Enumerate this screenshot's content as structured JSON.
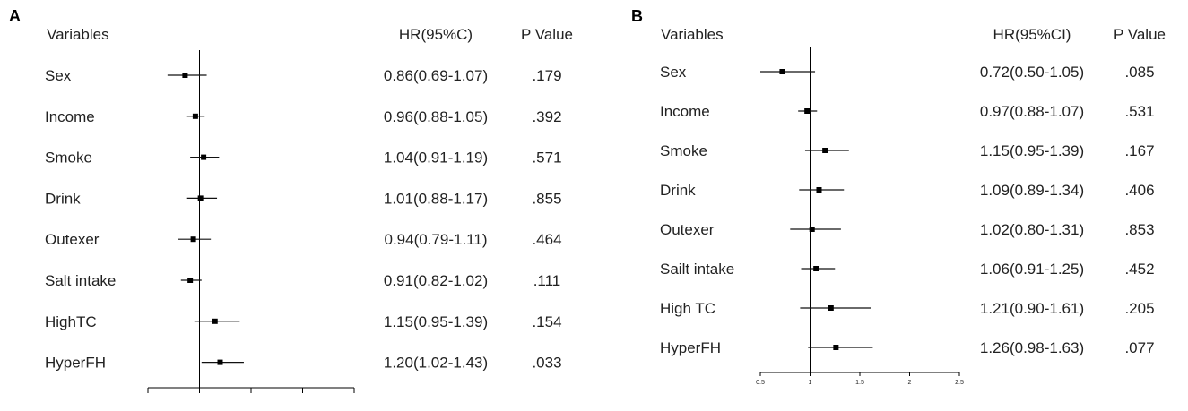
{
  "chart_data": [
    {
      "type": "forest",
      "panel_label": "A",
      "header": {
        "variables": "Variables",
        "hr": "HR(95%C)",
        "p": "P Value"
      },
      "xlim": [
        0.5,
        2.5
      ],
      "ref_line": 1,
      "rows": [
        {
          "variable": "Sex",
          "hr": 0.86,
          "lo": 0.69,
          "hi": 1.07,
          "hr_text": "0.86(0.69-1.07)",
          "p": ".179"
        },
        {
          "variable": "Income",
          "hr": 0.96,
          "lo": 0.88,
          "hi": 1.05,
          "hr_text": "0.96(0.88-1.05)",
          "p": ".392"
        },
        {
          "variable": "Smoke",
          "hr": 1.04,
          "lo": 0.91,
          "hi": 1.19,
          "hr_text": "1.04(0.91-1.19)",
          "p": ".571"
        },
        {
          "variable": "Drink",
          "hr": 1.01,
          "lo": 0.88,
          "hi": 1.17,
          "hr_text": "1.01(0.88-1.17)",
          "p": ".855"
        },
        {
          "variable": "Outexer",
          "hr": 0.94,
          "lo": 0.79,
          "hi": 1.11,
          "hr_text": "0.94(0.79-1.11)",
          "p": ".464"
        },
        {
          "variable": "Salt intake",
          "hr": 0.91,
          "lo": 0.82,
          "hi": 1.02,
          "hr_text": "0.91(0.82-1.02)",
          "p": ".111"
        },
        {
          "variable": "HighTC",
          "hr": 1.15,
          "lo": 0.95,
          "hi": 1.39,
          "hr_text": "1.15(0.95-1.39)",
          "p": ".154"
        },
        {
          "variable": "HyperFH",
          "hr": 1.2,
          "lo": 1.02,
          "hi": 1.43,
          "hr_text": "1.20(1.02-1.43)",
          "p": ".033"
        }
      ]
    },
    {
      "type": "forest",
      "panel_label": "B",
      "header": {
        "variables": "Variables",
        "hr": "HR(95%CI)",
        "p": "P Value"
      },
      "xlim": [
        0.5,
        2.5
      ],
      "ref_line": 1,
      "x_ticks": [
        "0.5",
        "1",
        "1.5",
        "2",
        "2.5"
      ],
      "rows": [
        {
          "variable": "Sex",
          "hr": 0.72,
          "lo": 0.5,
          "hi": 1.05,
          "hr_text": "0.72(0.50-1.05)",
          "p": ".085"
        },
        {
          "variable": "Income",
          "hr": 0.97,
          "lo": 0.88,
          "hi": 1.07,
          "hr_text": "0.97(0.88-1.07)",
          "p": ".531"
        },
        {
          "variable": "Smoke",
          "hr": 1.15,
          "lo": 0.95,
          "hi": 1.39,
          "hr_text": "1.15(0.95-1.39)",
          "p": ".167"
        },
        {
          "variable": "Drink",
          "hr": 1.09,
          "lo": 0.89,
          "hi": 1.34,
          "hr_text": "1.09(0.89-1.34)",
          "p": ".406"
        },
        {
          "variable": "Outexer",
          "hr": 1.02,
          "lo": 0.8,
          "hi": 1.31,
          "hr_text": "1.02(0.80-1.31)",
          "p": ".853"
        },
        {
          "variable": "Sailt intake",
          "hr": 1.06,
          "lo": 0.91,
          "hi": 1.25,
          "hr_text": "1.06(0.91-1.25)",
          "p": ".452"
        },
        {
          "variable": "High TC",
          "hr": 1.21,
          "lo": 0.9,
          "hi": 1.61,
          "hr_text": "1.21(0.90-1.61)",
          "p": ".205"
        },
        {
          "variable": "HyperFH",
          "hr": 1.26,
          "lo": 0.98,
          "hi": 1.63,
          "hr_text": "1.26(0.98-1.63)",
          "p": ".077"
        }
      ]
    }
  ]
}
